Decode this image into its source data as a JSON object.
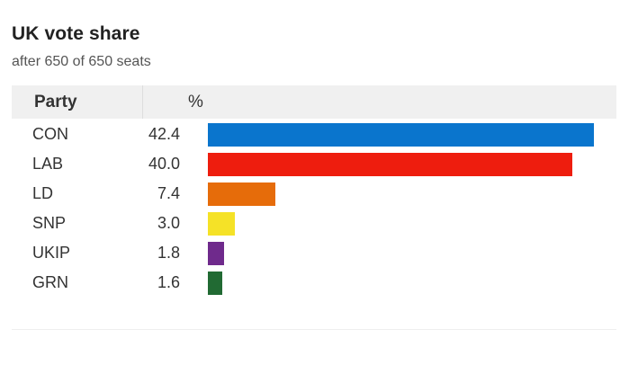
{
  "chart_data": {
    "type": "bar",
    "title": "UK vote share",
    "subtitle": "after 650 of 650 seats",
    "column_headers": {
      "party": "Party",
      "value": "%"
    },
    "categories": [
      "CON",
      "LAB",
      "LD",
      "SNP",
      "UKIP",
      "GRN"
    ],
    "values": [
      42.4,
      40.0,
      7.4,
      3.0,
      1.8,
      1.6
    ],
    "value_labels": [
      "42.4",
      "40.0",
      "7.4",
      "3.0",
      "1.8",
      "1.6"
    ],
    "colors": [
      "#0a75cd",
      "#ee1d0e",
      "#e66c0a",
      "#f5e227",
      "#6f2a8c",
      "#216a33"
    ],
    "xlim": [
      0,
      42.4
    ],
    "orientation": "horizontal",
    "grid": false
  }
}
